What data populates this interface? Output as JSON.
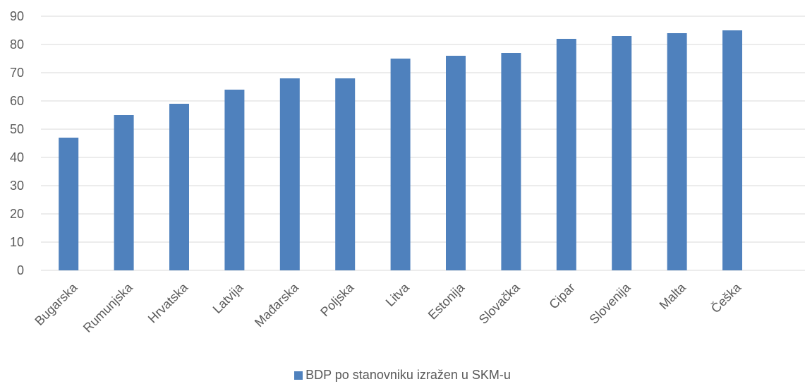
{
  "chart_data": {
    "type": "bar",
    "categories": [
      "Bugarska",
      "Rumunjska",
      "Hrvatska",
      "Latvija",
      "Mađarska",
      "Poljska",
      "Litva",
      "Estonija",
      "Slovačka",
      "Cipar",
      "Slovenija",
      "Malta",
      "Češka"
    ],
    "series": [
      {
        "name": "BDP po stanovniku izražen u SKM-u",
        "values": [
          47,
          55,
          59,
          64,
          68,
          68,
          75,
          76,
          77,
          82,
          83,
          84,
          85
        ],
        "color": "#4F81BD"
      }
    ],
    "yticks": [
      "0",
      "10",
      "20",
      "30",
      "40",
      "50",
      "60",
      "70",
      "80",
      "90"
    ],
    "ylim": [
      0,
      90
    ],
    "grid": true,
    "legend_position": "bottom"
  }
}
